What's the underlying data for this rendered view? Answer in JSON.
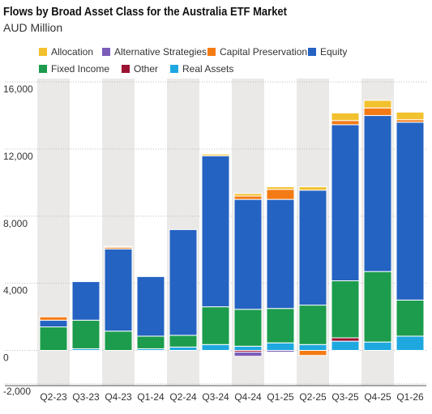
{
  "chart_data": {
    "type": "stacked_bar",
    "title": "Flows by Broad Asset Class for the Australia ETF Market",
    "subtitle": "AUD Million",
    "categories": [
      "Q2-23",
      "Q3-23",
      "Q4-23",
      "Q1-24",
      "Q2-24",
      "Q3-24",
      "Q4-24",
      "Q1-25",
      "Q2-25",
      "Q3-25",
      "Q4-25",
      "Q1-26"
    ],
    "series": [
      {
        "name": "Allocation",
        "color": "#f2c12e",
        "values": [
          0,
          0,
          50,
          0,
          0,
          100,
          150,
          150,
          200,
          450,
          450,
          450
        ]
      },
      {
        "name": "Alternative Strategies",
        "color": "#7b5cb8",
        "values": [
          0,
          0,
          0,
          0,
          0,
          0,
          -250,
          -100,
          0,
          0,
          0,
          0
        ]
      },
      {
        "name": "Capital Preservation",
        "color": "#f47b14",
        "values": [
          200,
          0,
          100,
          0,
          0,
          0,
          200,
          600,
          -300,
          250,
          450,
          150
        ]
      },
      {
        "name": "Equity",
        "color": "#2563c2",
        "values": [
          400,
          2300,
          4900,
          3550,
          6300,
          9000,
          6550,
          6500,
          6850,
          9300,
          9300,
          10600
        ]
      },
      {
        "name": "Fixed Income",
        "color": "#1c9c4c",
        "values": [
          1400,
          1700,
          1150,
          750,
          700,
          2250,
          2200,
          2050,
          2350,
          3400,
          4200,
          2150
        ]
      },
      {
        "name": "Other",
        "color": "#9c1232",
        "values": [
          0,
          0,
          0,
          0,
          0,
          0,
          -100,
          0,
          0,
          200,
          0,
          0
        ]
      },
      {
        "name": "Real Assets",
        "color": "#1fa8e0",
        "values": [
          0,
          100,
          0,
          100,
          200,
          350,
          250,
          450,
          350,
          550,
          500,
          850
        ]
      }
    ],
    "ylim": [
      -2100,
      16200
    ],
    "yticks": [
      {
        "value": -2000,
        "label": "-2,000"
      },
      0,
      {
        "value": 4000,
        "label": "4,000"
      },
      {
        "value": 8000,
        "label": "8,000"
      },
      {
        "value": 12000,
        "label": "12,000"
      },
      {
        "value": 16000,
        "label": "16,000"
      }
    ],
    "grid": true
  }
}
